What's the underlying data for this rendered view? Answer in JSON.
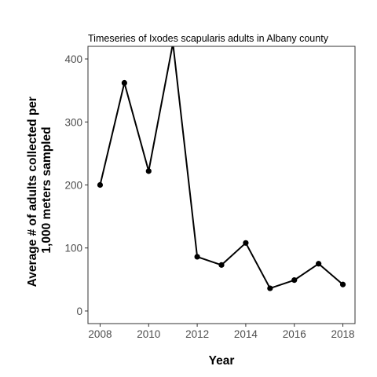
{
  "chart_data": {
    "type": "line",
    "title": "Timeseries of Ixodes scapularis adults in Albany county",
    "xlabel": "Year",
    "ylabel_lines": [
      "Average # of adults collected per",
      "1,000 meters sampled"
    ],
    "x": [
      2008,
      2009,
      2010,
      2011,
      2012,
      2013,
      2014,
      2015,
      2016,
      2017,
      2018
    ],
    "series": [
      {
        "values": [
          200,
          362,
          222,
          425,
          86,
          73,
          108,
          36,
          49,
          75,
          42
        ]
      }
    ],
    "xlim": [
      2007.5,
      2018.5
    ],
    "ylim": [
      -20,
      420
    ],
    "x_ticks": [
      2008,
      2010,
      2012,
      2014,
      2016,
      2018
    ],
    "y_ticks": [
      0,
      100,
      200,
      300,
      400
    ],
    "grid": false,
    "legend": "none",
    "colors": {
      "line": "#000000",
      "point": "#000000",
      "tick_text": "#4d4d4d",
      "panel_border": "#333333"
    }
  }
}
